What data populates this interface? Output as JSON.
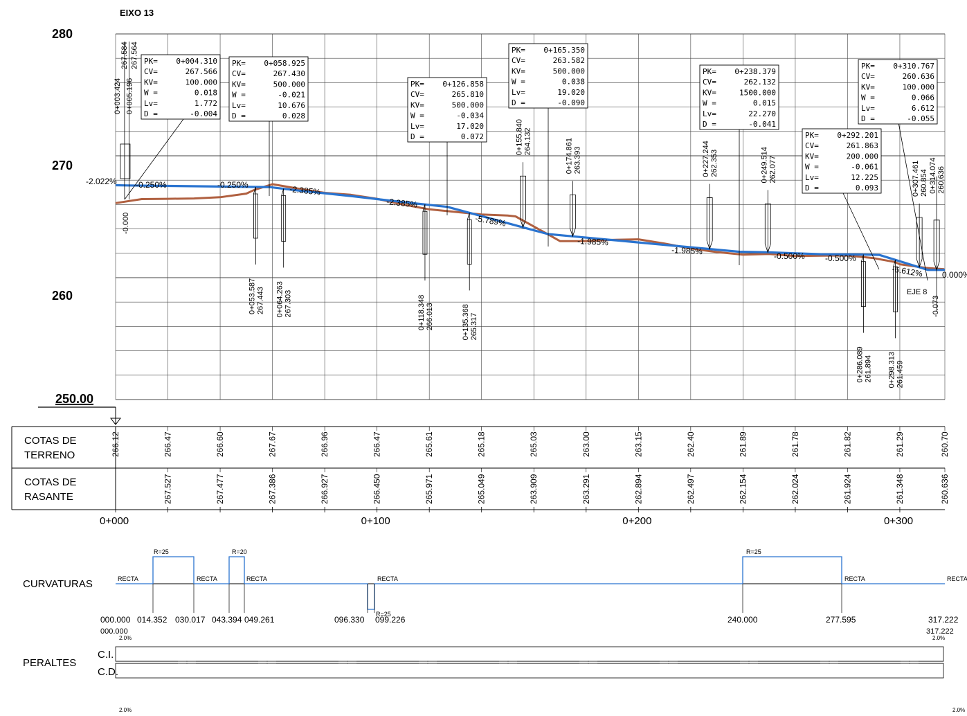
{
  "title": "EIXO 13",
  "y_axis": {
    "labels": [
      "280",
      "270",
      "260"
    ],
    "datum": "250.00"
  },
  "chainage_labels": [
    "0+000",
    "0+100",
    "0+200",
    "0+300"
  ],
  "rows": {
    "terreno": {
      "label": [
        "COTAS DE",
        "TERRENO"
      ],
      "values": [
        "266.12",
        "266.47",
        "266.60",
        "267.67",
        "266.96",
        "266.47",
        "265.61",
        "265.18",
        "265.03",
        "263.00",
        "263.15",
        "262.40",
        "261.89",
        "261.78",
        "261.82",
        "261.29",
        "260.70"
      ]
    },
    "rasante": {
      "label": [
        "COTAS DE",
        "RASANTE"
      ],
      "values": [
        "267.527",
        "267.477",
        "267.386",
        "266.927",
        "266.450",
        "265.971",
        "265.049",
        "263.909",
        "263.291",
        "262.894",
        "262.497",
        "262.154",
        "262.024",
        "261.924",
        "261.348",
        "260.636"
      ]
    }
  },
  "chart_data": {
    "type": "line",
    "title": "EIXO 13",
    "xlabel": "",
    "ylabel": "",
    "ylim": [
      250,
      280
    ],
    "xlim": [
      0,
      317.222
    ],
    "series": [
      {
        "name": "terreno",
        "color": "#b06040",
        "x": [
          0,
          10,
          20,
          30,
          40,
          50,
          53,
          60,
          70,
          80,
          90,
          100,
          110,
          120,
          130,
          140,
          150,
          153,
          160,
          165,
          170,
          180,
          190,
          200,
          210,
          220,
          230,
          240,
          250,
          260,
          270,
          280,
          290,
          298,
          300,
          310,
          317
        ],
        "y": [
          266.12,
          266.45,
          266.47,
          266.5,
          266.6,
          266.9,
          267.2,
          267.67,
          267.3,
          266.96,
          266.8,
          266.47,
          266.0,
          265.61,
          265.4,
          265.18,
          265.1,
          265.03,
          264.2,
          263.6,
          263.0,
          263.0,
          263.1,
          263.15,
          262.8,
          262.4,
          262.1,
          261.89,
          261.95,
          261.78,
          261.8,
          261.82,
          261.6,
          261.29,
          261.1,
          260.8,
          260.7
        ]
      },
      {
        "name": "rasante",
        "color": "#2a74d0",
        "x": [
          0,
          4.31,
          20,
          40,
          58.925,
          70,
          90,
          110,
          126.858,
          140,
          155.84,
          165.35,
          174.861,
          200,
          227.244,
          238.379,
          249.514,
          270,
          286.089,
          292.201,
          298.313,
          307.461,
          310.767,
          314.074,
          317.222
        ],
        "y": [
          267.584,
          267.566,
          267.527,
          267.477,
          267.43,
          267.15,
          266.7,
          266.2,
          265.81,
          265.049,
          264.132,
          263.582,
          263.393,
          262.894,
          262.353,
          262.132,
          262.077,
          261.924,
          261.894,
          261.863,
          261.459,
          260.854,
          260.636,
          260.636,
          260.636
        ]
      }
    ]
  },
  "vertices": [
    {
      "pk": "0+004.310",
      "cv": "267.566",
      "kv": "100.000",
      "w": "0.018",
      "lv": "1.772",
      "d": "-0.004"
    },
    {
      "pk": "0+058.925",
      "cv": "267.430",
      "kv": "500.000",
      "w": "-0.021",
      "lv": "10.676",
      "d": "0.028"
    },
    {
      "pk": "0+126.858",
      "cv": "265.810",
      "kv": "500.000",
      "w": "-0.034",
      "lv": "17.020",
      "d": "0.072"
    },
    {
      "pk": "0+165.350",
      "cv": "263.582",
      "kv": "500.000",
      "w": "0.038",
      "lv": "19.020",
      "d": "-0.090"
    },
    {
      "pk": "0+238.379",
      "cv": "262.132",
      "kv": "1500.000",
      "w": "0.015",
      "lv": "22.270",
      "d": "-0.041"
    },
    {
      "pk": "0+292.201",
      "cv": "261.863",
      "kv": "200.000",
      "w": "-0.061",
      "lv": "12.225",
      "d": "0.093"
    },
    {
      "pk": "0+310.767",
      "cv": "260.636",
      "kv": "100.000",
      "w": "0.066",
      "lv": "6.612",
      "d": "-0.055"
    }
  ],
  "box_keys": {
    "pk": "PK=",
    "cv": "CV=",
    "kv": "KV=",
    "w": "W  =",
    "lv": "Lv=",
    "d": "D  ="
  },
  "station_labels": [
    "0+003.424",
    "267.584",
    "0+005.196",
    "267.564",
    "0+053.587",
    "267.443",
    "0+064.263",
    "267.303",
    "0+118.348",
    "266.013",
    "0+135.368",
    "265.317",
    "0+155.840",
    "264.132",
    "0+174.861",
    "263.393",
    "0+227.244",
    "262.353",
    "0+249.514",
    "262.077",
    "0+286.089",
    "261.894",
    "0+298.313",
    "261.459",
    "0+307.461",
    "260.854",
    "0+314.074",
    "260.636"
  ],
  "slope_labels": [
    "-2.022%",
    "-0.250%",
    "-0.250%",
    "-2.385%",
    "-2.385%",
    "-5.789%",
    "-1.985%",
    "-1.985%",
    "-0.500%",
    "-0.500%",
    "-6.612%",
    "0.000%",
    "-0.000",
    "-0.073"
  ],
  "eje_label": "EJE 8",
  "curvaturas": {
    "label": "CURVATURAS",
    "recta": "RECTA",
    "radii": [
      "R=25",
      "R=20",
      "R=25",
      "R=25"
    ],
    "stations": [
      "000.000",
      "014.352",
      "030.017",
      "043.394",
      "049.261",
      "096.330",
      "099.226",
      "240.000",
      "277.595",
      "317.222"
    ]
  },
  "peraltes": {
    "label": "PERALTES",
    "ci": "C.I.",
    "cd": "C.D.",
    "start": "000.000",
    "end": "317.222",
    "pct": "2.0%"
  }
}
